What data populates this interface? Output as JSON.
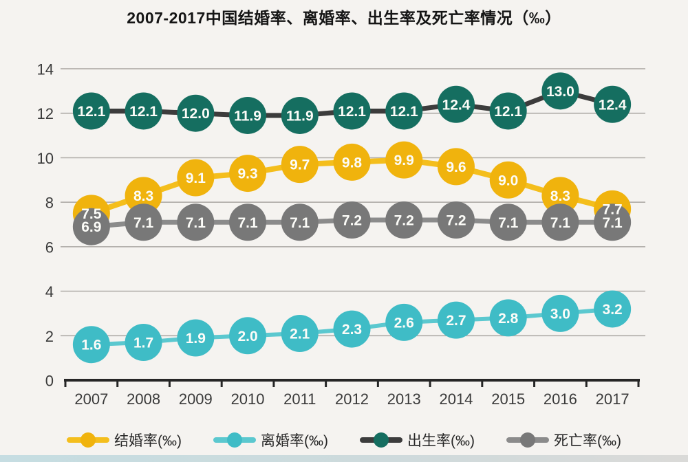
{
  "header": {
    "title": "2007-2017中国结婚率、离婚率、出生率及死亡率情况（‰）"
  },
  "chart_data": {
    "type": "line",
    "title": "2007-2017中国结婚率、离婚率、出生率及死亡率情况（‰）",
    "categories": [
      "2007",
      "2008",
      "2009",
      "2010",
      "2011",
      "2012",
      "2013",
      "2014",
      "2015",
      "2016",
      "2017"
    ],
    "series": [
      {
        "key": "marriage",
        "name": "结婚率(‰)",
        "values": [
          7.5,
          8.3,
          9.1,
          9.3,
          9.7,
          9.8,
          9.9,
          9.6,
          9.0,
          8.3,
          7.7
        ],
        "marker_color": "#F0B30D",
        "line_color": "#F4BE1C",
        "line_width": 8
      },
      {
        "key": "death",
        "name": "死亡率(‰)",
        "values": [
          6.9,
          7.1,
          7.1,
          7.1,
          7.1,
          7.2,
          7.2,
          7.2,
          7.1,
          7.1,
          7.1
        ],
        "marker_color": "#787878",
        "line_color": "#8B8B8B",
        "line_width": 7
      },
      {
        "key": "birth",
        "name": "出生率(‰)",
        "values": [
          12.1,
          12.1,
          12.0,
          11.9,
          11.9,
          12.1,
          12.1,
          12.4,
          12.1,
          13.0,
          12.4
        ],
        "marker_color": "#156E60",
        "line_color": "#3C3C3C",
        "line_width": 7
      },
      {
        "key": "divorce",
        "name": "离婚率(‰)",
        "values": [
          1.6,
          1.7,
          1.9,
          2.0,
          2.1,
          2.3,
          2.6,
          2.7,
          2.8,
          3.0,
          3.2
        ],
        "marker_color": "#3FBCC6",
        "line_color": "#5BC8CF",
        "line_width": 6
      }
    ],
    "legend": [
      {
        "label": "结婚率(‰)",
        "series": 0
      },
      {
        "label": "离婚率(‰)",
        "series": 3
      },
      {
        "label": "出生率(‰)",
        "series": 2
      },
      {
        "label": "死亡率(‰)",
        "series": 1
      }
    ],
    "legend_position": "bottom",
    "grid": true,
    "ylim": [
      0,
      14
    ],
    "yticks": [
      0,
      2,
      4,
      6,
      8,
      10,
      12,
      14
    ],
    "colors": {
      "gridline": "#b3b0ac",
      "axis": "#262626",
      "tick_label": "#3a3a3a",
      "value_label": "#fcfcf8"
    }
  }
}
